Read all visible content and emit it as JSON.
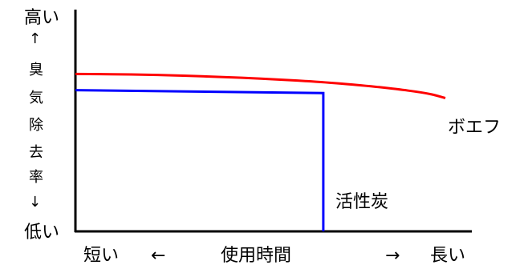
{
  "chart_data": {
    "type": "line",
    "title": "",
    "xlabel": "使用時間",
    "ylabel": "臭気除去率",
    "x_low_label": "短い",
    "x_high_label": "長い",
    "x_arrow_left": "←",
    "x_arrow_right": "→",
    "y_high_label": "高い",
    "y_low_label": "低い",
    "y_arrow_up": "↑",
    "y_arrow_down": "↓",
    "y_axis_chars": [
      "臭",
      "気",
      "除",
      "去",
      "率"
    ],
    "xlim": [
      0,
      100
    ],
    "ylim": [
      0,
      100
    ],
    "series": [
      {
        "name": "ボエフ",
        "color": "#ff0000",
        "x": [
          0,
          15,
          30,
          45,
          60,
          72,
          82,
          90,
          96,
          100
        ],
        "y": [
          72,
          71.8,
          71.2,
          70.3,
          69,
          67.6,
          66,
          64.4,
          62.8,
          61
        ]
      },
      {
        "name": "活性炭",
        "color": "#0000ff",
        "x": [
          0,
          67,
          67
        ],
        "y": [
          64.6,
          63.3,
          0
        ]
      }
    ]
  }
}
